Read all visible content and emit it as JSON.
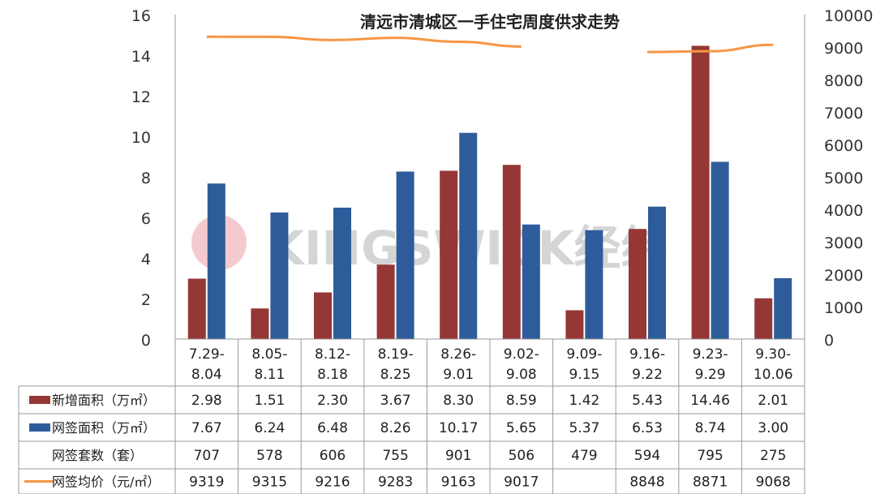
{
  "chart_data": {
    "type": "bar",
    "title": "清远市清城区一手住宅周度供求走势",
    "categories": [
      [
        "7.29-",
        "8.04"
      ],
      [
        "8.05-",
        "8.11"
      ],
      [
        "8.12-",
        "8.18"
      ],
      [
        "8.19-",
        "8.25"
      ],
      [
        "8.26-",
        "9.01"
      ],
      [
        "9.02-",
        "9.08"
      ],
      [
        "9.09-",
        "9.15"
      ],
      [
        "9.16-",
        "9.22"
      ],
      [
        "9.23-",
        "9.29"
      ],
      [
        "9.30-",
        "10.06"
      ]
    ],
    "left_axis": {
      "ylim": [
        0,
        16
      ],
      "ticks": [
        "0",
        "2",
        "4",
        "6",
        "8",
        "10",
        "12",
        "14",
        "16"
      ]
    },
    "right_axis": {
      "ylim": [
        0,
        10000
      ],
      "ticks": [
        "0",
        "1000",
        "2000",
        "3000",
        "4000",
        "5000",
        "6000",
        "7000",
        "8000",
        "9000",
        "10000"
      ]
    },
    "series": [
      {
        "name": "新增面积（万㎡）",
        "type": "bar",
        "axis": "left",
        "color": "#953735",
        "values": [
          2.98,
          1.51,
          2.3,
          3.67,
          8.3,
          8.59,
          1.42,
          5.43,
          14.46,
          2.01
        ],
        "labels": [
          "2.98",
          "1.51",
          "2.30",
          "3.67",
          "8.30",
          "8.59",
          "1.42",
          "5.43",
          "14.46",
          "2.01"
        ]
      },
      {
        "name": "网签面积（万㎡）",
        "type": "bar",
        "axis": "left",
        "color": "#2E5C9A",
        "values": [
          7.67,
          6.24,
          6.48,
          8.26,
          10.17,
          5.65,
          5.37,
          6.53,
          8.74,
          3.0
        ],
        "labels": [
          "7.67",
          "6.24",
          "6.48",
          "8.26",
          "10.17",
          "5.65",
          "5.37",
          "6.53",
          "8.74",
          "3.00"
        ]
      },
      {
        "name": "网签套数（套）",
        "type": "table-only",
        "color": "",
        "values": [
          707,
          578,
          606,
          755,
          901,
          506,
          479,
          594,
          795,
          275
        ],
        "labels": [
          "707",
          "578",
          "606",
          "755",
          "901",
          "506",
          "479",
          "594",
          "795",
          "275"
        ]
      },
      {
        "name": "网签均价（元/㎡）",
        "type": "line",
        "axis": "right",
        "color": "#F79646",
        "values": [
          9319,
          9315,
          9216,
          9283,
          9163,
          9017,
          null,
          8848,
          8871,
          9068
        ],
        "labels": [
          "9319",
          "9315",
          "9216",
          "9283",
          "9163",
          "9017",
          "",
          "8848",
          "8871",
          "9068"
        ]
      }
    ],
    "grid": false,
    "legend": "data table below chart"
  },
  "watermark": {
    "text": "KINGSWICK经纬",
    "color": "#C8C8C8",
    "logo_color": "#F2B8BE"
  }
}
